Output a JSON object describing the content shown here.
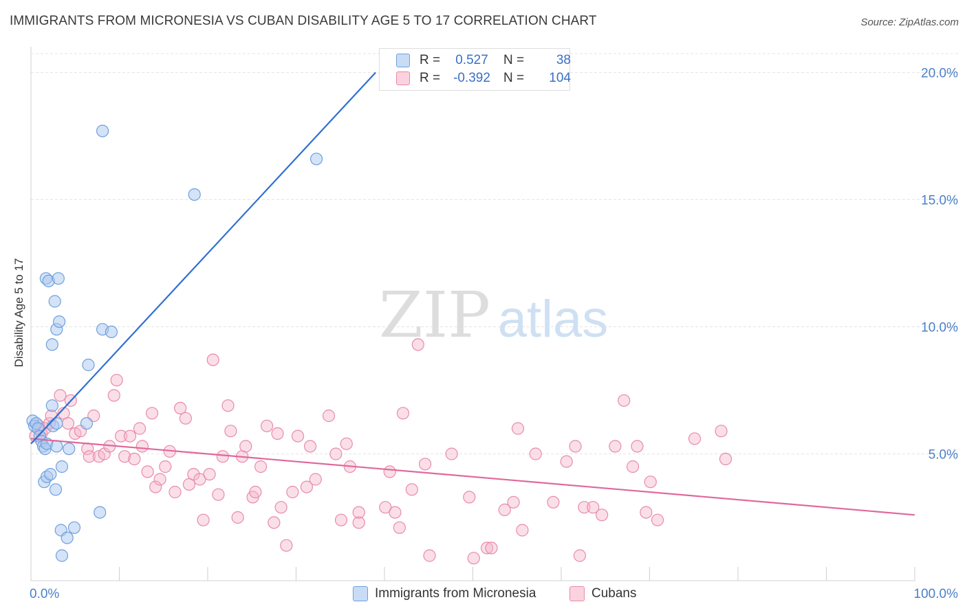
{
  "header": {
    "title": "IMMIGRANTS FROM MICRONESIA VS CUBAN DISABILITY AGE 5 TO 17 CORRELATION CHART",
    "source": "Source: ZipAtlas.com"
  },
  "watermark": {
    "part1": "ZIP",
    "part2": "atlas"
  },
  "colors": {
    "blue_fill": "#aac8f0",
    "blue_stroke": "#6f9fdc",
    "blue_line": "#2e6fd1",
    "pink_fill": "#f5b8cb",
    "pink_stroke": "#e98aa8",
    "pink_line": "#e0689a",
    "axis_text": "#4a7fc9"
  },
  "legend_top": {
    "rows": [
      {
        "r_label": "R =",
        "r_value": "0.527",
        "n_label": "N =",
        "n_value": "38",
        "color": "#aac8f0"
      },
      {
        "r_label": "R =",
        "r_value": "-0.392",
        "n_label": "N =",
        "n_value": "104",
        "color": "#f5b8cb"
      }
    ]
  },
  "legend_bottom": {
    "items": [
      {
        "label": "Immigrants from Micronesia",
        "color": "#aac8f0"
      },
      {
        "label": "Cubans",
        "color": "#f5b8cb"
      }
    ]
  },
  "chart_data": {
    "type": "scatter",
    "title": "IMMIGRANTS FROM MICRONESIA VS CUBAN DISABILITY AGE 5 TO 17 CORRELATION CHART",
    "xlabel": "",
    "ylabel": "Disability Age 5 to 17",
    "xlim": [
      0,
      100
    ],
    "ylim": [
      0,
      20
    ],
    "x_tick_labels": [
      "0.0%",
      "100.0%"
    ],
    "y_ticks": [
      5,
      10,
      15,
      20
    ],
    "y_tick_labels": [
      "5.0%",
      "10.0%",
      "15.0%",
      "20.0%"
    ],
    "grid": true,
    "legend_position": "top-center",
    "series": [
      {
        "name": "Immigrants from Micronesia",
        "color": "#aac8f0",
        "r": 0.527,
        "n": 38,
        "trend": {
          "x0": 0,
          "y0": 5.4,
          "x1": 39,
          "y1": 20.0
        },
        "points": [
          [
            0.2,
            6.3
          ],
          [
            0.4,
            6.1
          ],
          [
            0.6,
            6.2
          ],
          [
            0.8,
            6.0
          ],
          [
            1.0,
            5.7
          ],
          [
            1.2,
            5.5
          ],
          [
            1.4,
            5.3
          ],
          [
            1.6,
            5.2
          ],
          [
            1.8,
            5.4
          ],
          [
            1.5,
            3.9
          ],
          [
            1.8,
            4.1
          ],
          [
            2.2,
            4.2
          ],
          [
            1.7,
            11.9
          ],
          [
            2.0,
            11.8
          ],
          [
            3.1,
            11.9
          ],
          [
            2.9,
            9.9
          ],
          [
            3.2,
            10.2
          ],
          [
            2.7,
            11.0
          ],
          [
            2.4,
            9.3
          ],
          [
            2.9,
            5.3
          ],
          [
            3.5,
            4.5
          ],
          [
            4.3,
            5.2
          ],
          [
            3.4,
            2.0
          ],
          [
            4.1,
            1.7
          ],
          [
            4.9,
            2.1
          ],
          [
            3.5,
            1.0
          ],
          [
            2.8,
            3.6
          ],
          [
            2.4,
            6.9
          ],
          [
            2.5,
            6.1
          ],
          [
            2.9,
            6.2
          ],
          [
            6.3,
            6.2
          ],
          [
            6.5,
            8.5
          ],
          [
            8.1,
            9.9
          ],
          [
            9.1,
            9.8
          ],
          [
            8.1,
            17.7
          ],
          [
            18.5,
            15.2
          ],
          [
            32.3,
            16.6
          ],
          [
            7.8,
            2.7
          ]
        ]
      },
      {
        "name": "Cubans",
        "color": "#f5b8cb",
        "r": -0.392,
        "n": 104,
        "trend": {
          "x0": 0,
          "y0": 5.6,
          "x1": 100,
          "y1": 2.6
        },
        "points": [
          [
            0.5,
            5.7
          ],
          [
            0.9,
            6.1
          ],
          [
            1.2,
            5.8
          ],
          [
            1.6,
            6.0
          ],
          [
            2.1,
            6.2
          ],
          [
            2.3,
            6.5
          ],
          [
            3.3,
            7.3
          ],
          [
            3.7,
            6.6
          ],
          [
            4.5,
            7.1
          ],
          [
            4.2,
            6.2
          ],
          [
            5.0,
            5.8
          ],
          [
            5.6,
            5.9
          ],
          [
            6.4,
            5.2
          ],
          [
            6.6,
            4.9
          ],
          [
            7.1,
            6.5
          ],
          [
            7.7,
            4.9
          ],
          [
            8.3,
            5.0
          ],
          [
            8.9,
            5.3
          ],
          [
            9.4,
            7.3
          ],
          [
            9.7,
            7.9
          ],
          [
            10.2,
            5.7
          ],
          [
            10.6,
            4.9
          ],
          [
            11.2,
            5.7
          ],
          [
            11.7,
            4.8
          ],
          [
            12.3,
            6.0
          ],
          [
            12.6,
            5.3
          ],
          [
            13.2,
            4.3
          ],
          [
            13.7,
            6.6
          ],
          [
            14.1,
            3.7
          ],
          [
            14.6,
            4.0
          ],
          [
            15.2,
            4.5
          ],
          [
            15.7,
            5.1
          ],
          [
            16.3,
            3.5
          ],
          [
            16.9,
            6.8
          ],
          [
            17.5,
            6.4
          ],
          [
            17.9,
            3.8
          ],
          [
            18.4,
            4.2
          ],
          [
            19.1,
            4.0
          ],
          [
            19.5,
            2.4
          ],
          [
            20.2,
            4.2
          ],
          [
            20.6,
            8.7
          ],
          [
            21.2,
            3.4
          ],
          [
            21.7,
            4.9
          ],
          [
            22.3,
            6.9
          ],
          [
            22.6,
            5.9
          ],
          [
            23.4,
            2.5
          ],
          [
            23.9,
            4.9
          ],
          [
            24.3,
            5.3
          ],
          [
            25.1,
            3.3
          ],
          [
            25.4,
            3.5
          ],
          [
            26.0,
            4.5
          ],
          [
            26.7,
            6.1
          ],
          [
            27.5,
            2.3
          ],
          [
            27.9,
            5.8
          ],
          [
            28.3,
            2.9
          ],
          [
            28.9,
            1.4
          ],
          [
            29.6,
            3.5
          ],
          [
            30.2,
            5.7
          ],
          [
            31.2,
            3.7
          ],
          [
            31.6,
            5.3
          ],
          [
            32.2,
            4.0
          ],
          [
            33.7,
            6.5
          ],
          [
            34.5,
            5.0
          ],
          [
            35.1,
            2.4
          ],
          [
            35.7,
            5.4
          ],
          [
            36.1,
            4.5
          ],
          [
            37.1,
            2.3
          ],
          [
            37.1,
            2.7
          ],
          [
            40.1,
            2.9
          ],
          [
            40.6,
            4.3
          ],
          [
            41.2,
            2.7
          ],
          [
            41.7,
            2.1
          ],
          [
            42.1,
            6.6
          ],
          [
            43.1,
            3.6
          ],
          [
            43.8,
            9.3
          ],
          [
            44.6,
            4.6
          ],
          [
            45.1,
            1.0
          ],
          [
            47.6,
            5.0
          ],
          [
            49.6,
            3.3
          ],
          [
            50.1,
            0.9
          ],
          [
            51.6,
            1.3
          ],
          [
            52.1,
            1.3
          ],
          [
            53.6,
            2.8
          ],
          [
            54.6,
            3.1
          ],
          [
            55.1,
            6.0
          ],
          [
            55.6,
            2.0
          ],
          [
            57.1,
            5.0
          ],
          [
            59.1,
            3.1
          ],
          [
            60.6,
            4.7
          ],
          [
            61.6,
            5.3
          ],
          [
            62.1,
            1.0
          ],
          [
            62.6,
            2.9
          ],
          [
            63.6,
            2.9
          ],
          [
            64.6,
            2.6
          ],
          [
            66.1,
            5.3
          ],
          [
            67.1,
            7.1
          ],
          [
            68.1,
            4.5
          ],
          [
            68.6,
            5.3
          ],
          [
            69.6,
            2.7
          ],
          [
            70.1,
            3.9
          ],
          [
            70.9,
            2.4
          ],
          [
            75.1,
            5.6
          ],
          [
            78.1,
            5.9
          ],
          [
            78.6,
            4.8
          ]
        ]
      }
    ]
  }
}
